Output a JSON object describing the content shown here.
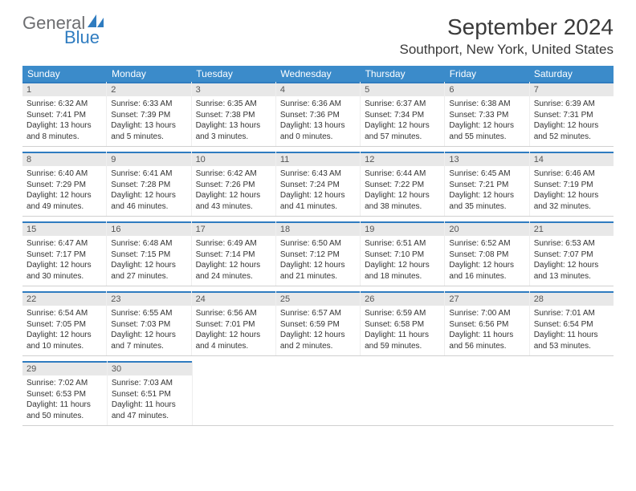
{
  "logo": {
    "top": "General",
    "bottom": "Blue",
    "icon_color": "#2f7cc0",
    "top_color": "#6d6e71"
  },
  "header": {
    "title": "September 2024",
    "location": "Southport, New York, United States"
  },
  "calendar": {
    "header_bg": "#3b8bca",
    "header_fg": "#ffffff",
    "daynum_bg": "#e8e8e8",
    "daynum_border": "#2f7cc0",
    "weekdays": [
      "Sunday",
      "Monday",
      "Tuesday",
      "Wednesday",
      "Thursday",
      "Friday",
      "Saturday"
    ],
    "weeks": [
      [
        {
          "num": "1",
          "sunrise": "6:32 AM",
          "sunset": "7:41 PM",
          "daylight": "13 hours and 8 minutes."
        },
        {
          "num": "2",
          "sunrise": "6:33 AM",
          "sunset": "7:39 PM",
          "daylight": "13 hours and 5 minutes."
        },
        {
          "num": "3",
          "sunrise": "6:35 AM",
          "sunset": "7:38 PM",
          "daylight": "13 hours and 3 minutes."
        },
        {
          "num": "4",
          "sunrise": "6:36 AM",
          "sunset": "7:36 PM",
          "daylight": "13 hours and 0 minutes."
        },
        {
          "num": "5",
          "sunrise": "6:37 AM",
          "sunset": "7:34 PM",
          "daylight": "12 hours and 57 minutes."
        },
        {
          "num": "6",
          "sunrise": "6:38 AM",
          "sunset": "7:33 PM",
          "daylight": "12 hours and 55 minutes."
        },
        {
          "num": "7",
          "sunrise": "6:39 AM",
          "sunset": "7:31 PM",
          "daylight": "12 hours and 52 minutes."
        }
      ],
      [
        {
          "num": "8",
          "sunrise": "6:40 AM",
          "sunset": "7:29 PM",
          "daylight": "12 hours and 49 minutes."
        },
        {
          "num": "9",
          "sunrise": "6:41 AM",
          "sunset": "7:28 PM",
          "daylight": "12 hours and 46 minutes."
        },
        {
          "num": "10",
          "sunrise": "6:42 AM",
          "sunset": "7:26 PM",
          "daylight": "12 hours and 43 minutes."
        },
        {
          "num": "11",
          "sunrise": "6:43 AM",
          "sunset": "7:24 PM",
          "daylight": "12 hours and 41 minutes."
        },
        {
          "num": "12",
          "sunrise": "6:44 AM",
          "sunset": "7:22 PM",
          "daylight": "12 hours and 38 minutes."
        },
        {
          "num": "13",
          "sunrise": "6:45 AM",
          "sunset": "7:21 PM",
          "daylight": "12 hours and 35 minutes."
        },
        {
          "num": "14",
          "sunrise": "6:46 AM",
          "sunset": "7:19 PM",
          "daylight": "12 hours and 32 minutes."
        }
      ],
      [
        {
          "num": "15",
          "sunrise": "6:47 AM",
          "sunset": "7:17 PM",
          "daylight": "12 hours and 30 minutes."
        },
        {
          "num": "16",
          "sunrise": "6:48 AM",
          "sunset": "7:15 PM",
          "daylight": "12 hours and 27 minutes."
        },
        {
          "num": "17",
          "sunrise": "6:49 AM",
          "sunset": "7:14 PM",
          "daylight": "12 hours and 24 minutes."
        },
        {
          "num": "18",
          "sunrise": "6:50 AM",
          "sunset": "7:12 PM",
          "daylight": "12 hours and 21 minutes."
        },
        {
          "num": "19",
          "sunrise": "6:51 AM",
          "sunset": "7:10 PM",
          "daylight": "12 hours and 18 minutes."
        },
        {
          "num": "20",
          "sunrise": "6:52 AM",
          "sunset": "7:08 PM",
          "daylight": "12 hours and 16 minutes."
        },
        {
          "num": "21",
          "sunrise": "6:53 AM",
          "sunset": "7:07 PM",
          "daylight": "12 hours and 13 minutes."
        }
      ],
      [
        {
          "num": "22",
          "sunrise": "6:54 AM",
          "sunset": "7:05 PM",
          "daylight": "12 hours and 10 minutes."
        },
        {
          "num": "23",
          "sunrise": "6:55 AM",
          "sunset": "7:03 PM",
          "daylight": "12 hours and 7 minutes."
        },
        {
          "num": "24",
          "sunrise": "6:56 AM",
          "sunset": "7:01 PM",
          "daylight": "12 hours and 4 minutes."
        },
        {
          "num": "25",
          "sunrise": "6:57 AM",
          "sunset": "6:59 PM",
          "daylight": "12 hours and 2 minutes."
        },
        {
          "num": "26",
          "sunrise": "6:59 AM",
          "sunset": "6:58 PM",
          "daylight": "11 hours and 59 minutes."
        },
        {
          "num": "27",
          "sunrise": "7:00 AM",
          "sunset": "6:56 PM",
          "daylight": "11 hours and 56 minutes."
        },
        {
          "num": "28",
          "sunrise": "7:01 AM",
          "sunset": "6:54 PM",
          "daylight": "11 hours and 53 minutes."
        }
      ],
      [
        {
          "num": "29",
          "sunrise": "7:02 AM",
          "sunset": "6:53 PM",
          "daylight": "11 hours and 50 minutes."
        },
        {
          "num": "30",
          "sunrise": "7:03 AM",
          "sunset": "6:51 PM",
          "daylight": "11 hours and 47 minutes."
        },
        null,
        null,
        null,
        null,
        null
      ]
    ]
  }
}
